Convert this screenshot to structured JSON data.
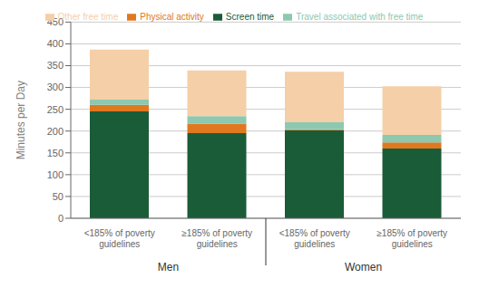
{
  "chart_data": {
    "type": "bar",
    "stacked": true,
    "ylabel": "Minutes per Day",
    "categories": [
      "<185% of poverty\nguidelines",
      "≥185% of poverty\nguidelines",
      "<185% of poverty\nguidelines",
      "≥185% of poverty\nguidelines"
    ],
    "groups": [
      "Men",
      "Women"
    ],
    "series": [
      {
        "name": "Screen time",
        "color": "#1a5c38",
        "values": [
          245,
          195,
          202,
          160
        ]
      },
      {
        "name": "Physical activity",
        "color": "#e07820",
        "values": [
          15,
          22,
          2,
          14
        ]
      },
      {
        "name": "Travel associated with free time",
        "color": "#8dc8b0",
        "values": [
          12,
          17,
          16,
          17
        ]
      },
      {
        "name": "Other free time",
        "color": "#f5cfa8",
        "values": [
          115,
          105,
          116,
          112
        ]
      }
    ],
    "ylim": [
      0,
      450
    ],
    "yticks": [
      0,
      50,
      100,
      150,
      200,
      250,
      300,
      350,
      400,
      450
    ],
    "grid": true,
    "legend": "top"
  }
}
